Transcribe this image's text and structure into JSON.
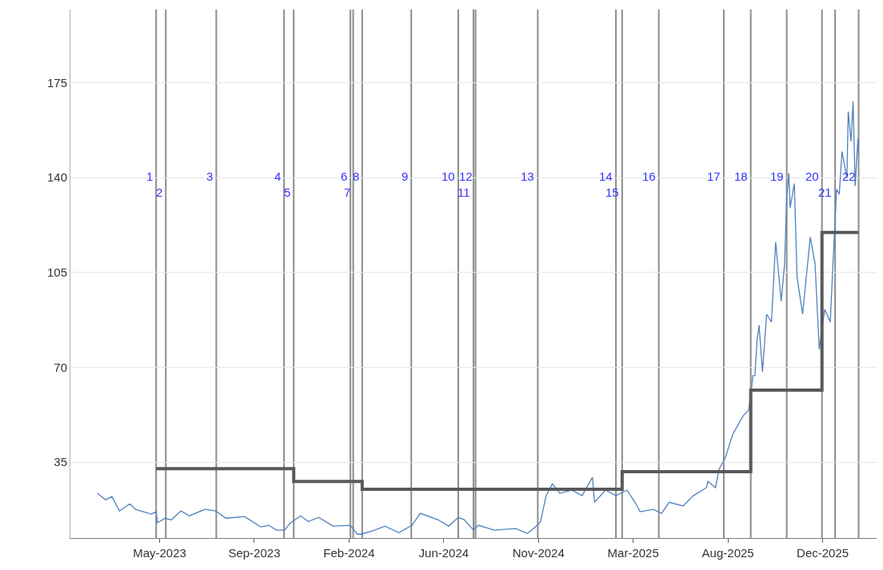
{
  "chart_data": {
    "type": "line",
    "xlim": [
      "2023-01-01",
      "2026-03-12"
    ],
    "ylim": [
      7,
      202
    ],
    "xticks": [
      {
        "value": "2023-05-10",
        "label": "May-2023"
      },
      {
        "value": "2023-09-24",
        "label": "Sep-2023"
      },
      {
        "value": "2024-02-08",
        "label": "Feb-2024"
      },
      {
        "value": "2024-06-24",
        "label": "Jun-2024"
      },
      {
        "value": "2024-11-08",
        "label": "Nov-2024"
      },
      {
        "value": "2025-03-25",
        "label": "Mar-2025"
      },
      {
        "value": "2025-08-09",
        "label": "Aug-2025"
      },
      {
        "value": "2025-12-24",
        "label": "Dec-2025"
      }
    ],
    "yticks": [
      35,
      70,
      105,
      140,
      175
    ],
    "grid": "y",
    "series": [
      {
        "color": "#4f81bd",
        "x": [
          "2023-02-09",
          "2023-02-21",
          "2023-03-02",
          "2023-03-13",
          "2023-03-28",
          "2023-04-05",
          "2023-04-28",
          "2023-05-05",
          "2023-05-07",
          "2023-05-18",
          "2023-05-27",
          "2023-06-10",
          "2023-06-22",
          "2023-07-15",
          "2023-07-30",
          "2023-08-14",
          "2023-09-10",
          "2023-10-03",
          "2023-10-15",
          "2023-10-26",
          "2023-11-07",
          "2023-11-14",
          "2023-11-30",
          "2023-12-11",
          "2023-12-26",
          "2024-01-16",
          "2024-02-10",
          "2024-02-20",
          "2024-02-25",
          "2024-03-13",
          "2024-03-31",
          "2024-04-20",
          "2024-05-09",
          "2024-05-21",
          "2024-06-16",
          "2024-07-01",
          "2024-07-15",
          "2024-07-24",
          "2024-08-06",
          "2024-08-13",
          "2024-09-05",
          "2024-10-06",
          "2024-10-23",
          "2024-11-05",
          "2024-11-11",
          "2024-11-19",
          "2024-11-28",
          "2024-12-09",
          "2024-12-26",
          "2025-01-10",
          "2025-01-25",
          "2025-01-28",
          "2025-02-13",
          "2025-02-28",
          "2025-03-16",
          "2025-03-29",
          "2025-04-04",
          "2025-04-23",
          "2025-05-05",
          "2025-05-16",
          "2025-06-05",
          "2025-06-20",
          "2025-07-09",
          "2025-07-11",
          "2025-07-22",
          "2025-07-27",
          "2025-08-05",
          "2025-08-16",
          "2025-08-31",
          "2025-09-08",
          "2025-09-12",
          "2025-09-14",
          "2025-09-17",
          "2025-09-20",
          "2025-09-23",
          "2025-09-28",
          "2025-10-04",
          "2025-10-11",
          "2025-10-17",
          "2025-10-25",
          "2025-10-30",
          "2025-11-02",
          "2025-11-05",
          "2025-11-07",
          "2025-11-13",
          "2025-11-17",
          "2025-11-25",
          "2025-12-06",
          "2025-12-13",
          "2025-12-19",
          "2025-12-27",
          "2026-01-04",
          "2026-01-07",
          "2026-01-13",
          "2026-01-17",
          "2026-01-21",
          "2026-01-28",
          "2026-01-30",
          "2026-02-03",
          "2026-02-06",
          "2026-02-09",
          "2026-02-13",
          "2026-02-14"
        ],
        "values": [
          23.5,
          21.1,
          22.3,
          17.0,
          19.6,
          17.6,
          15.8,
          16.7,
          12.6,
          14.3,
          13.7,
          17.0,
          15.2,
          17.6,
          17.0,
          14.3,
          14.9,
          11.1,
          11.7,
          9.9,
          9.9,
          12.3,
          15.2,
          13.1,
          14.6,
          11.4,
          11.7,
          8.4,
          8.4,
          9.6,
          11.4,
          9.0,
          11.7,
          16.1,
          13.7,
          11.4,
          14.6,
          13.7,
          9.9,
          11.7,
          9.9,
          10.5,
          8.7,
          11.4,
          13.1,
          22.6,
          27.0,
          23.5,
          24.7,
          22.6,
          29.4,
          20.2,
          24.7,
          22.6,
          24.7,
          19.6,
          16.7,
          17.6,
          16.1,
          20.2,
          18.8,
          22.6,
          25.6,
          27.9,
          25.6,
          32.3,
          36.5,
          45.3,
          52.1,
          54.2,
          61.9,
          66.9,
          66.9,
          79.6,
          85.5,
          68.4,
          89.6,
          86.7,
          116.2,
          94.4,
          108.3,
          132.8,
          141.6,
          128.9,
          137.8,
          103.2,
          89.6,
          118.0,
          108.3,
          76.6,
          91.4,
          86.7,
          103.2,
          135.7,
          133.9,
          149.6,
          139.8,
          164.4,
          153.4,
          168.2,
          136.9,
          154.6,
          148.7
        ]
      },
      {
        "color": "#595959",
        "x": [
          "2023-05-05",
          "2023-11-20",
          "2023-11-20",
          "2024-02-27",
          "2024-02-27",
          "2025-03-09",
          "2025-03-09",
          "2025-09-11",
          "2025-09-11",
          "2025-12-23",
          "2025-12-23",
          "2026-02-14"
        ],
        "values": [
          32.6,
          32.6,
          27.9,
          27.9,
          25.0,
          25.0,
          31.5,
          31.5,
          61.6,
          61.6,
          119.8,
          119.8
        ]
      }
    ],
    "ref_lines": [
      {
        "axis": "x",
        "value": "2023-05-05",
        "label": "1"
      },
      {
        "axis": "x",
        "value": "2023-05-19",
        "label": "2"
      },
      {
        "axis": "x",
        "value": "2023-07-31",
        "label": "3"
      },
      {
        "axis": "x",
        "value": "2023-11-06",
        "label": "4"
      },
      {
        "axis": "x",
        "value": "2023-11-20",
        "label": "5"
      },
      {
        "axis": "x",
        "value": "2024-02-10",
        "label": "6"
      },
      {
        "axis": "x",
        "value": "2024-02-14",
        "label": "7"
      },
      {
        "axis": "x",
        "value": "2024-02-27",
        "label": "8"
      },
      {
        "axis": "x",
        "value": "2024-05-08",
        "label": "9"
      },
      {
        "axis": "x",
        "value": "2024-07-15",
        "label": "10"
      },
      {
        "axis": "x",
        "value": "2024-08-06",
        "label": "11"
      },
      {
        "axis": "x",
        "value": "2024-08-09",
        "label": "12"
      },
      {
        "axis": "x",
        "value": "2024-11-07",
        "label": "13"
      },
      {
        "axis": "x",
        "value": "2025-02-28",
        "label": "14"
      },
      {
        "axis": "x",
        "value": "2025-03-09",
        "label": "15"
      },
      {
        "axis": "x",
        "value": "2025-05-01",
        "label": "16"
      },
      {
        "axis": "x",
        "value": "2025-08-03",
        "label": "17"
      },
      {
        "axis": "x",
        "value": "2025-09-11",
        "label": "18"
      },
      {
        "axis": "x",
        "value": "2025-11-02",
        "label": "19"
      },
      {
        "axis": "x",
        "value": "2025-12-23",
        "label": "20"
      },
      {
        "axis": "x",
        "value": "2026-01-11",
        "label": "21"
      },
      {
        "axis": "x",
        "value": "2026-02-14",
        "label": "22"
      }
    ]
  }
}
